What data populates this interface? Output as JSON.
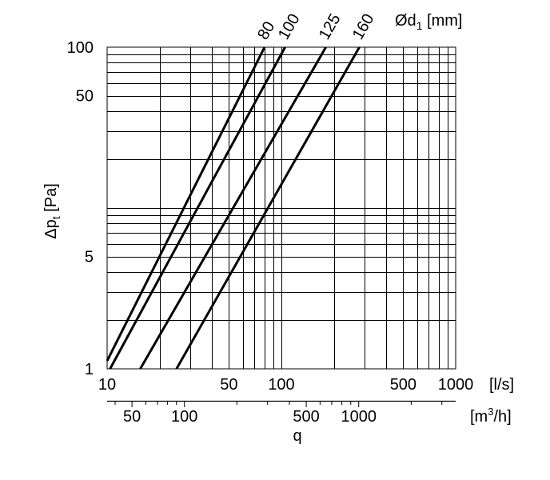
{
  "chart_data": {
    "type": "line",
    "title": "",
    "scale": "log-log",
    "grid": true,
    "xlabel": "q",
    "x_unit": "[l/s]",
    "x2_unit": "[m3/h]",
    "ylabel": "Δpt [Pa]",
    "xlim": [
      10,
      1000
    ],
    "ylim": [
      1,
      100
    ],
    "x_ticks": [
      10,
      50,
      100,
      500,
      1000
    ],
    "x_tick_labels": [
      "10",
      "50",
      "100",
      "500",
      "1000"
    ],
    "x2_ticks": [
      50,
      100,
      500,
      1000
    ],
    "x2_tick_labels": [
      "50",
      "100",
      "500",
      "1000"
    ],
    "y_ticks": [
      1,
      5,
      50,
      100
    ],
    "y_tick_labels": [
      "1",
      "5",
      "50",
      "100"
    ],
    "legend_title": "Ød1 [mm]",
    "series": [
      {
        "name": "80",
        "x": [
          10,
          80
        ],
        "y": [
          1.12,
          100
        ]
      },
      {
        "name": "100",
        "x": [
          10.4,
          105
        ],
        "y": [
          1,
          100
        ]
      },
      {
        "name": "125",
        "x": [
          15.5,
          180
        ],
        "y": [
          1,
          100
        ]
      },
      {
        "name": "160",
        "x": [
          25,
          280
        ],
        "y": [
          1,
          100
        ]
      }
    ]
  }
}
